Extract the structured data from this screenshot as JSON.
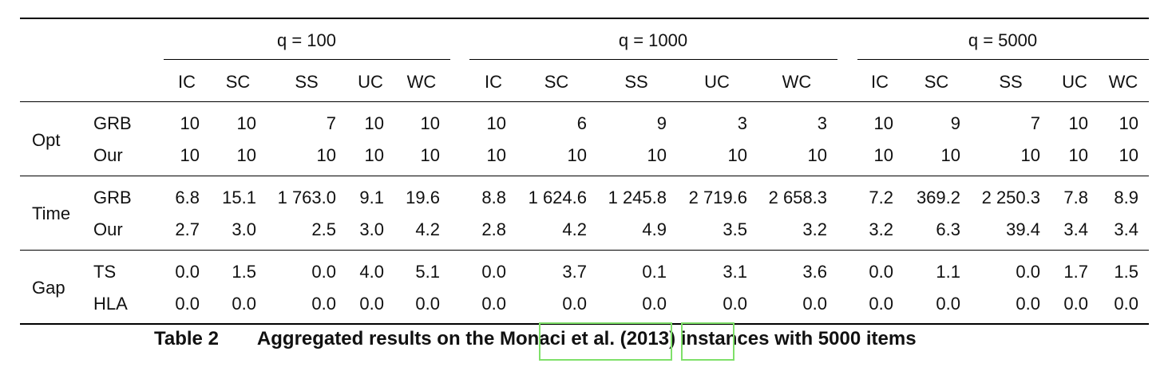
{
  "groups": [
    {
      "label": "q = 100",
      "cols": [
        "IC",
        "SC",
        "SS",
        "UC",
        "WC"
      ]
    },
    {
      "label": "q = 1000",
      "cols": [
        "IC",
        "SC",
        "SS",
        "UC",
        "WC"
      ]
    },
    {
      "label": "q = 5000",
      "cols": [
        "IC",
        "SC",
        "SS",
        "UC",
        "WC"
      ]
    }
  ],
  "sections": [
    {
      "label": "Opt",
      "rows": [
        {
          "label": "GRB",
          "values": [
            "10",
            "10",
            "7",
            "10",
            "10",
            "10",
            "6",
            "9",
            "3",
            "3",
            "10",
            "9",
            "7",
            "10",
            "10"
          ]
        },
        {
          "label": "Our",
          "values": [
            "10",
            "10",
            "10",
            "10",
            "10",
            "10",
            "10",
            "10",
            "10",
            "10",
            "10",
            "10",
            "10",
            "10",
            "10"
          ]
        }
      ]
    },
    {
      "label": "Time",
      "rows": [
        {
          "label": "GRB",
          "values": [
            "6.8",
            "15.1",
            "1 763.0",
            "9.1",
            "19.6",
            "8.8",
            "1 624.6",
            "1 245.8",
            "2 719.6",
            "2 658.3",
            "7.2",
            "369.2",
            "2 250.3",
            "7.8",
            "8.9"
          ]
        },
        {
          "label": "Our",
          "values": [
            "2.7",
            "3.0",
            "2.5",
            "3.0",
            "4.2",
            "2.8",
            "4.2",
            "4.9",
            "3.5",
            "3.2",
            "3.2",
            "6.3",
            "39.4",
            "3.4",
            "3.4"
          ]
        }
      ]
    },
    {
      "label": "Gap",
      "rows": [
        {
          "label": "TS",
          "values": [
            "0.0",
            "1.5",
            "0.0",
            "4.0",
            "5.1",
            "0.0",
            "3.7",
            "0.1",
            "3.1",
            "3.6",
            "0.0",
            "1.1",
            "0.0",
            "1.7",
            "1.5"
          ]
        },
        {
          "label": "HLA",
          "values": [
            "0.0",
            "0.0",
            "0.0",
            "0.0",
            "0.0",
            "0.0",
            "0.0",
            "0.0",
            "0.0",
            "0.0",
            "0.0",
            "0.0",
            "0.0",
            "0.0",
            "0.0"
          ]
        }
      ]
    }
  ],
  "caption": {
    "number": "Table 2",
    "prefix": "Aggregated results on the ",
    "cite_authors": "Monaci et al.",
    "cite_open": " (",
    "cite_year": "2013",
    "suffix": ") instances with 5000 items"
  }
}
